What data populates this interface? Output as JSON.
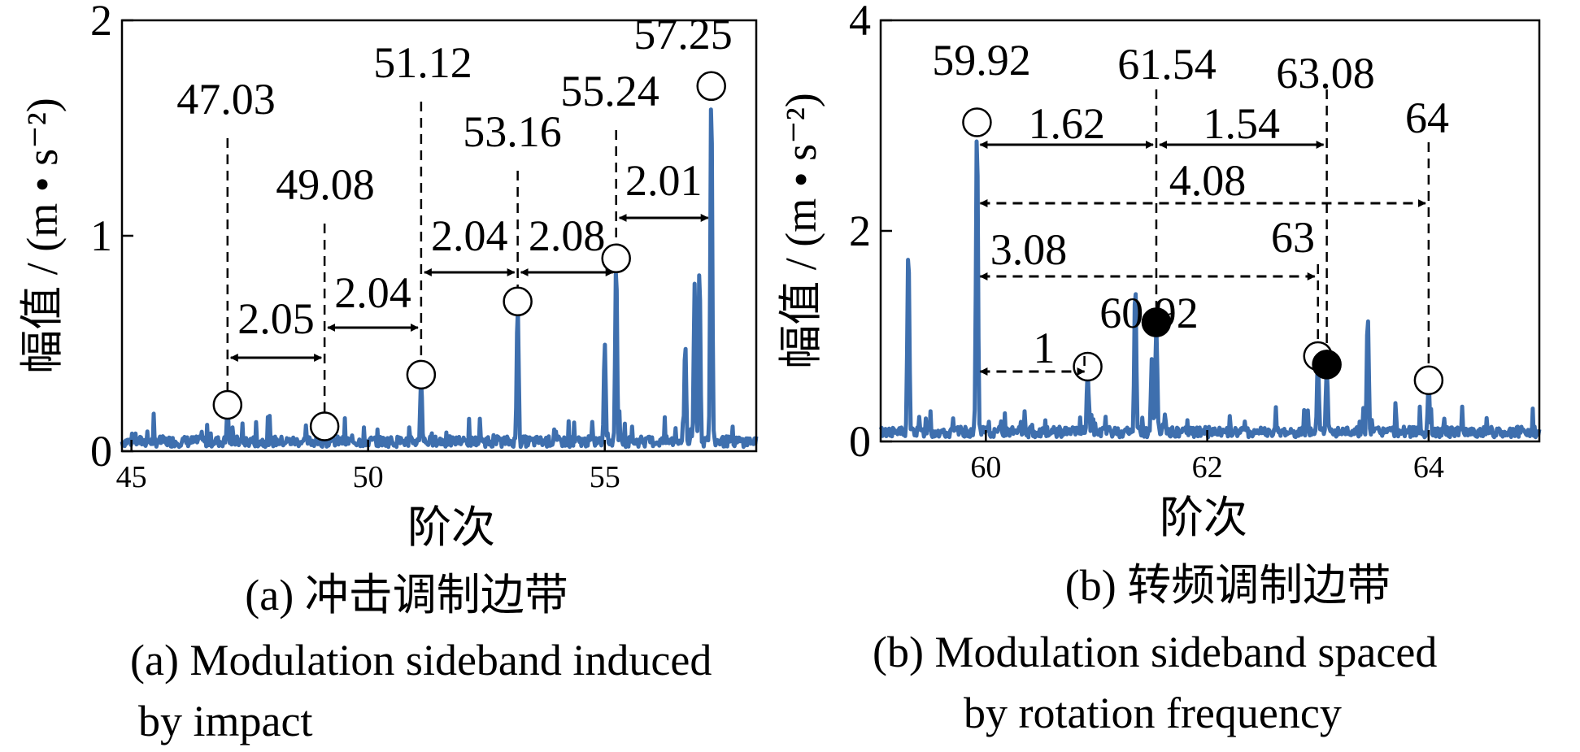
{
  "chart_data": [
    {
      "type": "line",
      "id": "a",
      "xlabel": "阶次",
      "ylabel": "幅值 / (m • s⁻²)",
      "xlim": [
        44.8,
        58.2
      ],
      "ylim": [
        0,
        2
      ],
      "xticks": [
        "45",
        "50",
        "55"
      ],
      "yticks": [
        "0",
        "1",
        "2"
      ],
      "caption_cn": "(a)  冲击调制边带",
      "caption_en": [
        "(a)  Modulation sideband induced",
        "by impact"
      ],
      "color": "#3e6fae",
      "peaks": [
        {
          "x": 47.03,
          "y": 0.2
        },
        {
          "x": 49.08,
          "y": 0.1
        },
        {
          "x": 51.12,
          "y": 0.34
        },
        {
          "x": 53.16,
          "y": 0.68
        },
        {
          "x": 55.24,
          "y": 0.88
        },
        {
          "x": 57.25,
          "y": 1.68
        }
      ],
      "peak_labels": [
        "47.03",
        "49.08",
        "51.12",
        "53.16",
        "55.24",
        "57.25"
      ],
      "spacings": [
        "2.05",
        "2.04",
        "2.04",
        "2.08",
        "2.01"
      ],
      "minor_peaks": [
        {
          "x": 55.0,
          "y": 0.5
        },
        {
          "x": 56.9,
          "y": 0.78
        },
        {
          "x": 57.0,
          "y": 0.85
        },
        {
          "x": 56.7,
          "y": 0.5
        }
      ]
    },
    {
      "type": "line",
      "id": "b",
      "xlabel": "阶次",
      "ylabel": "幅值 / (m • s⁻²)",
      "xlim": [
        59.05,
        65.0
      ],
      "ylim": [
        0,
        4
      ],
      "xticks": [
        "60",
        "62",
        "64"
      ],
      "yticks": [
        "0",
        "2",
        "4"
      ],
      "caption_cn": "(b)  转频调制边带",
      "caption_en": [
        "(b)  Modulation sideband spaced",
        "by rotation frequency"
      ],
      "color": "#3e6fae",
      "peaks": [
        {
          "x": 59.92,
          "y": 3.0
        },
        {
          "x": 60.92,
          "y": 0.68
        },
        {
          "x": 61.54,
          "y": 1.1,
          "filled": true
        },
        {
          "x": 63.0,
          "y": 0.78
        },
        {
          "x": 63.08,
          "y": 0.7,
          "filled": true
        },
        {
          "x": 64.0,
          "y": 0.55
        }
      ],
      "peak_labels": [
        "59.92",
        "60.92",
        "61.54",
        "63",
        "63.08",
        "64"
      ],
      "spacings": [
        "1.62",
        "1.54",
        "4.08",
        "3.08",
        "1"
      ],
      "minor_peaks": [
        {
          "x": 59.3,
          "y": 1.85
        },
        {
          "x": 61.35,
          "y": 1.5
        },
        {
          "x": 61.5,
          "y": 0.8
        },
        {
          "x": 63.45,
          "y": 1.2
        }
      ]
    }
  ]
}
